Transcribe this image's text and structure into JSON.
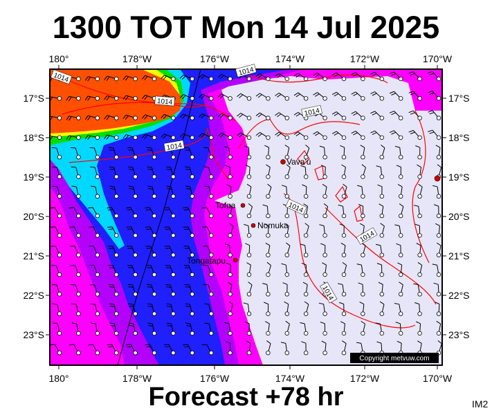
{
  "title": "1300 TOT Mon 14 Jul 2025",
  "subtitle": "Forecast +78 hr",
  "image_code": "IM2",
  "copyright": "Copyright metvuw.com",
  "axes": {
    "lon_labels": [
      "180°",
      "178°W",
      "176°W",
      "174°W",
      "172°W",
      "170°W"
    ],
    "lat_labels": [
      "17°S",
      "18°S",
      "19°S",
      "20°S",
      "21°S",
      "22°S",
      "23°S"
    ]
  },
  "isobar_labels": [
    "1014",
    "1014",
    "1014",
    "1014",
    "1014",
    "1014",
    "1014",
    "1014"
  ],
  "places": [
    {
      "name": "Vava'u"
    },
    {
      "name": "Tofua"
    },
    {
      "name": "Nomuka"
    },
    {
      "name": "Tongatapu"
    }
  ],
  "colors": {
    "background_fill": "#e6e6f8",
    "magenta": "#ff00ff",
    "purple": "#b400ff",
    "blue": "#2020ff",
    "cyan": "#00d8ff",
    "green": "#00e000",
    "yellow": "#ffff00",
    "orange": "#ff5000",
    "isobar": "#ff0000",
    "place_marker": "#d00000"
  }
}
